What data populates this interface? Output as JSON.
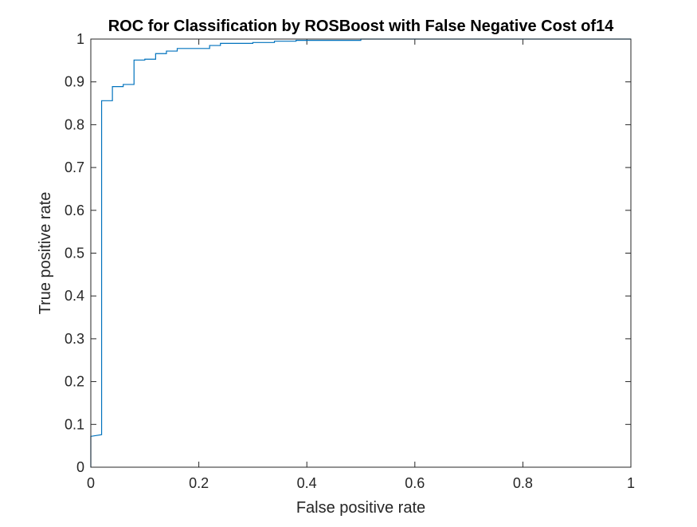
{
  "chart_data": {
    "type": "line",
    "title": "ROC for Classification by ROSBoost with False Negative Cost of14",
    "xlabel": "False positive rate",
    "ylabel": "True positive rate",
    "xlim": [
      0,
      1
    ],
    "ylim": [
      0,
      1
    ],
    "xticks": [
      0,
      0.2,
      0.4,
      0.6,
      0.8,
      1
    ],
    "xtick_labels": [
      "0",
      "0.2",
      "0.4",
      "0.6",
      "0.8",
      "1"
    ],
    "yticks": [
      0,
      0.1,
      0.2,
      0.3,
      0.4,
      0.5,
      0.6,
      0.7,
      0.8,
      0.9,
      1
    ],
    "ytick_labels": [
      "0",
      "0.1",
      "0.2",
      "0.3",
      "0.4",
      "0.5",
      "0.6",
      "0.7",
      "0.8",
      "0.9",
      "1"
    ],
    "grid": false,
    "legend": "none",
    "line_color": "#0072BD",
    "series": [
      {
        "step": true,
        "points": [
          [
            0.0,
            0.0
          ],
          [
            0.0,
            0.072
          ],
          [
            0.02,
            0.076
          ],
          [
            0.02,
            0.856
          ],
          [
            0.04,
            0.856
          ],
          [
            0.04,
            0.889
          ],
          [
            0.06,
            0.889
          ],
          [
            0.06,
            0.894
          ],
          [
            0.08,
            0.894
          ],
          [
            0.08,
            0.951
          ],
          [
            0.1,
            0.951
          ],
          [
            0.1,
            0.953
          ],
          [
            0.12,
            0.953
          ],
          [
            0.12,
            0.966
          ],
          [
            0.14,
            0.966
          ],
          [
            0.14,
            0.972
          ],
          [
            0.16,
            0.972
          ],
          [
            0.16,
            0.978
          ],
          [
            0.2,
            0.978
          ],
          [
            0.22,
            0.978
          ],
          [
            0.22,
            0.985
          ],
          [
            0.24,
            0.985
          ],
          [
            0.24,
            0.99
          ],
          [
            0.3,
            0.99
          ],
          [
            0.3,
            0.992
          ],
          [
            0.34,
            0.992
          ],
          [
            0.34,
            0.995
          ],
          [
            0.38,
            0.995
          ],
          [
            0.38,
            0.997
          ],
          [
            0.5,
            0.997
          ],
          [
            0.5,
            1.0
          ],
          [
            1.0,
            1.0
          ]
        ]
      }
    ]
  }
}
